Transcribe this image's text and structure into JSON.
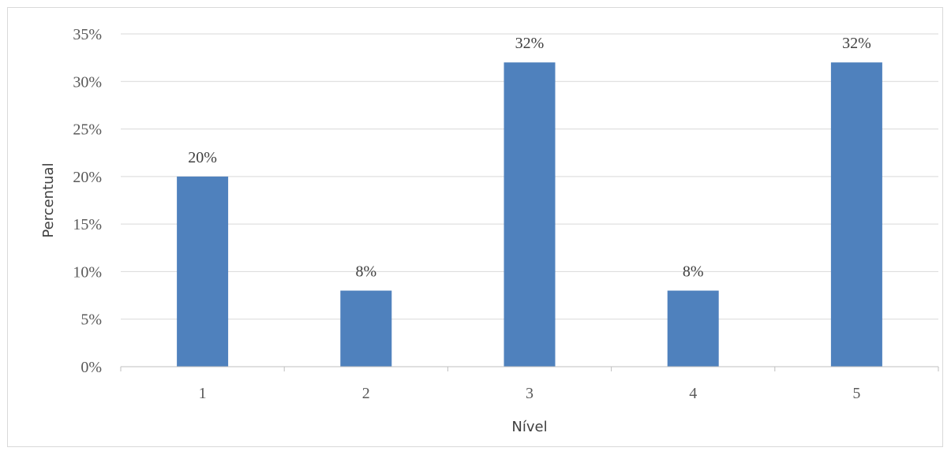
{
  "chart_data": {
    "type": "bar",
    "categories": [
      "1",
      "2",
      "3",
      "4",
      "5"
    ],
    "values": [
      20,
      8,
      32,
      8,
      32
    ],
    "data_labels": [
      "20%",
      "8%",
      "32%",
      "8%",
      "32%"
    ],
    "xlabel": "Nível",
    "ylabel": "Percentual",
    "ylim": [
      0,
      35
    ],
    "yticks": [
      0,
      5,
      10,
      15,
      20,
      25,
      30,
      35
    ],
    "ytick_labels": [
      "0%",
      "5%",
      "10%",
      "15%",
      "20%",
      "25%",
      "30%",
      "35%"
    ],
    "grid": true,
    "legend": "none",
    "bar_color": "#4f81bd"
  }
}
